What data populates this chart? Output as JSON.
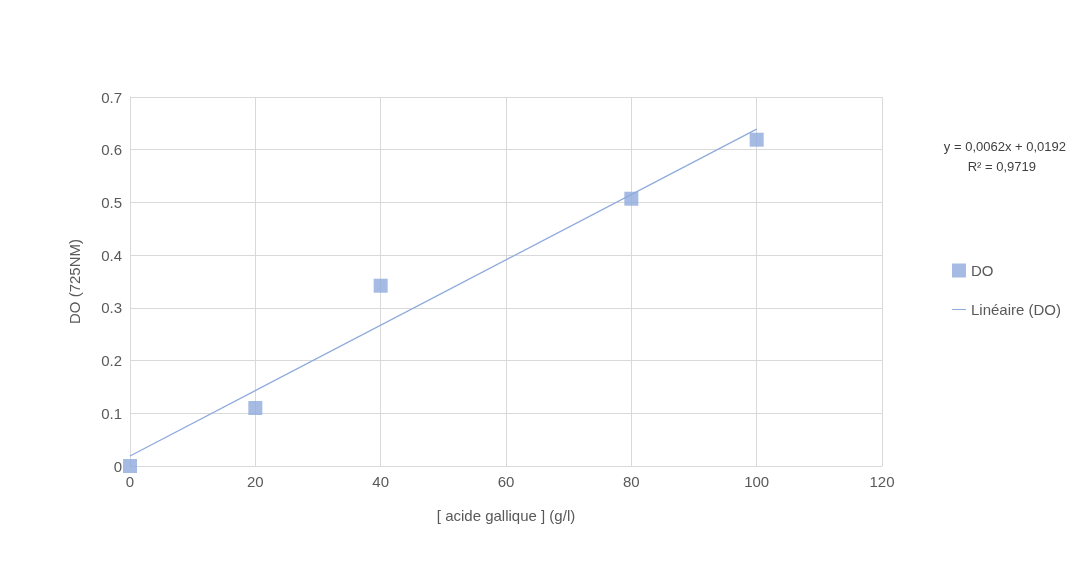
{
  "chart_data": {
    "type": "scatter",
    "xlabel": "[ acide gallique ] (g/l)",
    "ylabel": "DO (725NM)",
    "xlim": [
      0,
      120
    ],
    "xticks": [
      0,
      20,
      40,
      60,
      80,
      100,
      120
    ],
    "ylim": [
      0,
      0.7
    ],
    "yticks": [
      0,
      0.1,
      0.2,
      0.3,
      0.4,
      0.5,
      0.6,
      0.7
    ],
    "grid": true,
    "legend": "right",
    "marker": "square",
    "annotations": [
      "y = 0,0062x + 0,0192",
      "R² = 0,9719"
    ],
    "series": [
      {
        "name": "DO",
        "color": "#8faadc",
        "x": [
          0,
          20,
          40,
          80,
          100
        ],
        "values": [
          0,
          0.11,
          0.342,
          0.507,
          0.619
        ]
      },
      {
        "name": "Linéaire (DO)",
        "type": "line",
        "marker": "none",
        "color": "#8faadc",
        "x": [
          0,
          100
        ],
        "values": [
          0.019,
          0.639
        ]
      }
    ]
  }
}
